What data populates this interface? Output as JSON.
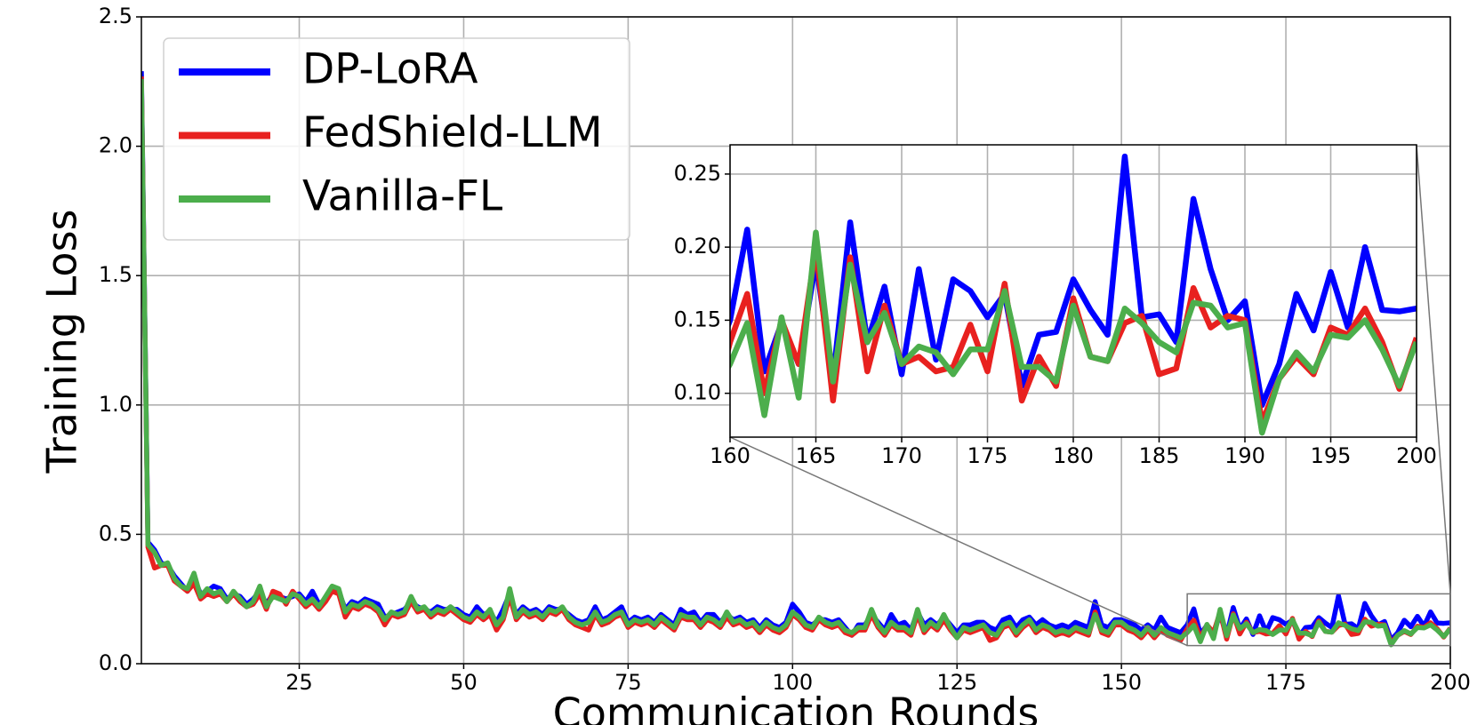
{
  "chart_data": {
    "type": "line",
    "x_label": "Communication Rounds",
    "y_label": "Training Loss",
    "xlim": [
      1,
      200
    ],
    "xticks": [
      25,
      50,
      75,
      100,
      125,
      150,
      175,
      200
    ],
    "ylim": [
      0,
      2.5
    ],
    "yticks": [
      {
        "value": 0,
        "label": "0.0"
      },
      {
        "value": 0.5,
        "label": "0.5"
      },
      {
        "value": 1,
        "label": "1.0"
      },
      {
        "value": 1.5,
        "label": "1.5"
      },
      {
        "value": 2,
        "label": "2.0"
      },
      {
        "value": 2.5,
        "label": "2.5"
      }
    ],
    "grid": true,
    "legend": "upper left",
    "inset": {
      "xlim": [
        160,
        200
      ],
      "xticks": [
        160,
        165,
        170,
        175,
        180,
        185,
        190,
        195,
        200
      ],
      "ylim": [
        0.07,
        0.27
      ],
      "yticks": [
        {
          "value": 0.1,
          "label": "0.10"
        },
        {
          "value": 0.15,
          "label": "0.15"
        },
        {
          "value": 0.2,
          "label": "0.20"
        },
        {
          "value": 0.25,
          "label": "0.25"
        }
      ],
      "grid": true
    },
    "x": [
      1,
      2,
      3,
      4,
      5,
      6,
      7,
      8,
      9,
      10,
      11,
      12,
      13,
      14,
      15,
      16,
      17,
      18,
      19,
      20,
      21,
      22,
      23,
      24,
      25,
      26,
      27,
      28,
      29,
      30,
      31,
      32,
      33,
      34,
      35,
      36,
      37,
      38,
      39,
      40,
      41,
      42,
      43,
      44,
      45,
      46,
      47,
      48,
      49,
      50,
      51,
      52,
      53,
      54,
      55,
      56,
      57,
      58,
      59,
      60,
      61,
      62,
      63,
      64,
      65,
      66,
      67,
      68,
      69,
      70,
      71,
      72,
      73,
      74,
      75,
      76,
      77,
      78,
      79,
      80,
      81,
      82,
      83,
      84,
      85,
      86,
      87,
      88,
      89,
      90,
      91,
      92,
      93,
      94,
      95,
      96,
      97,
      98,
      99,
      100,
      101,
      102,
      103,
      104,
      105,
      106,
      107,
      108,
      109,
      110,
      111,
      112,
      113,
      114,
      115,
      116,
      117,
      118,
      119,
      120,
      121,
      122,
      123,
      124,
      125,
      126,
      127,
      128,
      129,
      130,
      131,
      132,
      133,
      134,
      135,
      136,
      137,
      138,
      139,
      140,
      141,
      142,
      143,
      144,
      145,
      146,
      147,
      148,
      149,
      150,
      151,
      152,
      153,
      154,
      155,
      156,
      157,
      158,
      159,
      160,
      161,
      162,
      163,
      164,
      165,
      166,
      167,
      168,
      169,
      170,
      171,
      172,
      173,
      174,
      175,
      176,
      177,
      178,
      179,
      180,
      181,
      182,
      183,
      184,
      185,
      186,
      187,
      188,
      189,
      190,
      191,
      192,
      193,
      194,
      195,
      196,
      197,
      198,
      199,
      200
    ],
    "series": [
      {
        "name": "DP-LoRA",
        "color": "#0000ff",
        "values": [
          2.29,
          0.47,
          0.44,
          0.39,
          0.38,
          0.34,
          0.31,
          0.28,
          0.33,
          0.27,
          0.28,
          0.3,
          0.29,
          0.25,
          0.27,
          0.26,
          0.23,
          0.25,
          0.28,
          0.23,
          0.27,
          0.26,
          0.25,
          0.26,
          0.27,
          0.24,
          0.28,
          0.23,
          0.25,
          0.28,
          0.28,
          0.21,
          0.24,
          0.23,
          0.25,
          0.24,
          0.23,
          0.18,
          0.19,
          0.2,
          0.21,
          0.24,
          0.22,
          0.21,
          0.2,
          0.22,
          0.21,
          0.21,
          0.21,
          0.19,
          0.18,
          0.22,
          0.19,
          0.2,
          0.16,
          0.21,
          0.27,
          0.19,
          0.22,
          0.2,
          0.21,
          0.19,
          0.22,
          0.21,
          0.21,
          0.19,
          0.17,
          0.16,
          0.17,
          0.22,
          0.17,
          0.18,
          0.2,
          0.22,
          0.16,
          0.18,
          0.17,
          0.18,
          0.16,
          0.19,
          0.17,
          0.15,
          0.21,
          0.19,
          0.2,
          0.16,
          0.19,
          0.19,
          0.16,
          0.19,
          0.17,
          0.18,
          0.16,
          0.17,
          0.14,
          0.17,
          0.15,
          0.14,
          0.16,
          0.23,
          0.2,
          0.16,
          0.15,
          0.17,
          0.17,
          0.16,
          0.17,
          0.14,
          0.11,
          0.15,
          0.15,
          0.19,
          0.16,
          0.13,
          0.19,
          0.15,
          0.16,
          0.13,
          0.2,
          0.15,
          0.17,
          0.15,
          0.18,
          0.15,
          0.12,
          0.15,
          0.15,
          0.16,
          0.16,
          0.14,
          0.13,
          0.17,
          0.18,
          0.14,
          0.17,
          0.18,
          0.15,
          0.17,
          0.15,
          0.14,
          0.15,
          0.14,
          0.16,
          0.15,
          0.14,
          0.24,
          0.15,
          0.14,
          0.17,
          0.17,
          0.16,
          0.15,
          0.13,
          0.15,
          0.13,
          0.18,
          0.14,
          0.13,
          0.12,
          0.15,
          0.212,
          0.115,
          0.148,
          0.12,
          0.19,
          0.11,
          0.217,
          0.135,
          0.173,
          0.113,
          0.185,
          0.123,
          0.178,
          0.17,
          0.152,
          0.168,
          0.105,
          0.14,
          0.142,
          0.178,
          0.157,
          0.14,
          0.262,
          0.152,
          0.154,
          0.135,
          0.233,
          0.185,
          0.15,
          0.163,
          0.092,
          0.12,
          0.168,
          0.143,
          0.183,
          0.145,
          0.2,
          0.157,
          0.156,
          0.158
        ]
      },
      {
        "name": "FedShield-LLM",
        "color": "#e8211f",
        "values": [
          2.27,
          0.45,
          0.37,
          0.38,
          0.38,
          0.32,
          0.3,
          0.28,
          0.31,
          0.25,
          0.27,
          0.26,
          0.27,
          0.24,
          0.27,
          0.24,
          0.22,
          0.23,
          0.27,
          0.21,
          0.28,
          0.27,
          0.23,
          0.28,
          0.25,
          0.22,
          0.24,
          0.21,
          0.24,
          0.28,
          0.27,
          0.18,
          0.22,
          0.21,
          0.23,
          0.22,
          0.2,
          0.15,
          0.19,
          0.18,
          0.19,
          0.24,
          0.2,
          0.21,
          0.18,
          0.2,
          0.19,
          0.21,
          0.19,
          0.17,
          0.16,
          0.19,
          0.17,
          0.19,
          0.13,
          0.17,
          0.26,
          0.17,
          0.2,
          0.18,
          0.19,
          0.17,
          0.2,
          0.19,
          0.21,
          0.17,
          0.15,
          0.14,
          0.13,
          0.19,
          0.15,
          0.16,
          0.18,
          0.19,
          0.14,
          0.16,
          0.15,
          0.16,
          0.14,
          0.17,
          0.15,
          0.13,
          0.18,
          0.17,
          0.17,
          0.14,
          0.17,
          0.16,
          0.14,
          0.18,
          0.15,
          0.16,
          0.14,
          0.15,
          0.12,
          0.15,
          0.13,
          0.12,
          0.14,
          0.19,
          0.17,
          0.14,
          0.13,
          0.17,
          0.15,
          0.14,
          0.15,
          0.12,
          0.11,
          0.13,
          0.13,
          0.19,
          0.14,
          0.11,
          0.15,
          0.13,
          0.13,
          0.11,
          0.19,
          0.12,
          0.15,
          0.13,
          0.17,
          0.13,
          0.1,
          0.13,
          0.12,
          0.13,
          0.14,
          0.09,
          0.1,
          0.14,
          0.15,
          0.11,
          0.14,
          0.16,
          0.12,
          0.14,
          0.13,
          0.11,
          0.12,
          0.11,
          0.13,
          0.12,
          0.11,
          0.2,
          0.12,
          0.11,
          0.15,
          0.15,
          0.13,
          0.12,
          0.1,
          0.13,
          0.1,
          0.13,
          0.11,
          0.1,
          0.09,
          0.135,
          0.168,
          0.1,
          0.15,
          0.12,
          0.2,
          0.095,
          0.193,
          0.115,
          0.16,
          0.12,
          0.125,
          0.115,
          0.118,
          0.147,
          0.115,
          0.175,
          0.095,
          0.125,
          0.105,
          0.165,
          0.125,
          0.122,
          0.148,
          0.153,
          0.113,
          0.117,
          0.172,
          0.145,
          0.153,
          0.15,
          0.08,
          0.11,
          0.125,
          0.113,
          0.145,
          0.14,
          0.158,
          0.135,
          0.103,
          0.138
        ]
      },
      {
        "name": "Vanilla-FL",
        "color": "#4cae4c",
        "values": [
          2.26,
          0.46,
          0.43,
          0.38,
          0.39,
          0.33,
          0.3,
          0.29,
          0.35,
          0.26,
          0.29,
          0.27,
          0.28,
          0.24,
          0.28,
          0.25,
          0.22,
          0.24,
          0.3,
          0.22,
          0.26,
          0.25,
          0.24,
          0.27,
          0.26,
          0.23,
          0.25,
          0.22,
          0.26,
          0.3,
          0.29,
          0.2,
          0.23,
          0.22,
          0.24,
          0.23,
          0.21,
          0.17,
          0.2,
          0.19,
          0.2,
          0.26,
          0.21,
          0.22,
          0.19,
          0.21,
          0.2,
          0.22,
          0.2,
          0.18,
          0.17,
          0.2,
          0.18,
          0.21,
          0.15,
          0.18,
          0.29,
          0.18,
          0.21,
          0.19,
          0.2,
          0.18,
          0.21,
          0.2,
          0.22,
          0.18,
          0.16,
          0.15,
          0.16,
          0.2,
          0.16,
          0.17,
          0.19,
          0.2,
          0.15,
          0.17,
          0.16,
          0.17,
          0.15,
          0.18,
          0.16,
          0.14,
          0.19,
          0.18,
          0.18,
          0.15,
          0.18,
          0.17,
          0.15,
          0.2,
          0.16,
          0.17,
          0.15,
          0.16,
          0.13,
          0.16,
          0.14,
          0.13,
          0.15,
          0.2,
          0.18,
          0.15,
          0.14,
          0.18,
          0.16,
          0.15,
          0.16,
          0.13,
          0.12,
          0.14,
          0.14,
          0.21,
          0.15,
          0.12,
          0.16,
          0.14,
          0.14,
          0.12,
          0.21,
          0.13,
          0.16,
          0.14,
          0.19,
          0.14,
          0.1,
          0.14,
          0.13,
          0.14,
          0.15,
          0.12,
          0.11,
          0.15,
          0.16,
          0.12,
          0.15,
          0.17,
          0.13,
          0.15,
          0.14,
          0.12,
          0.13,
          0.12,
          0.14,
          0.13,
          0.12,
          0.19,
          0.13,
          0.12,
          0.16,
          0.16,
          0.14,
          0.13,
          0.11,
          0.14,
          0.11,
          0.14,
          0.12,
          0.11,
          0.1,
          0.12,
          0.148,
          0.085,
          0.152,
          0.097,
          0.21,
          0.108,
          0.188,
          0.135,
          0.155,
          0.12,
          0.132,
          0.128,
          0.113,
          0.13,
          0.13,
          0.17,
          0.118,
          0.118,
          0.108,
          0.16,
          0.125,
          0.122,
          0.158,
          0.148,
          0.135,
          0.128,
          0.162,
          0.16,
          0.145,
          0.148,
          0.073,
          0.11,
          0.128,
          0.115,
          0.14,
          0.138,
          0.15,
          0.13,
          0.105,
          0.135
        ]
      }
    ]
  }
}
